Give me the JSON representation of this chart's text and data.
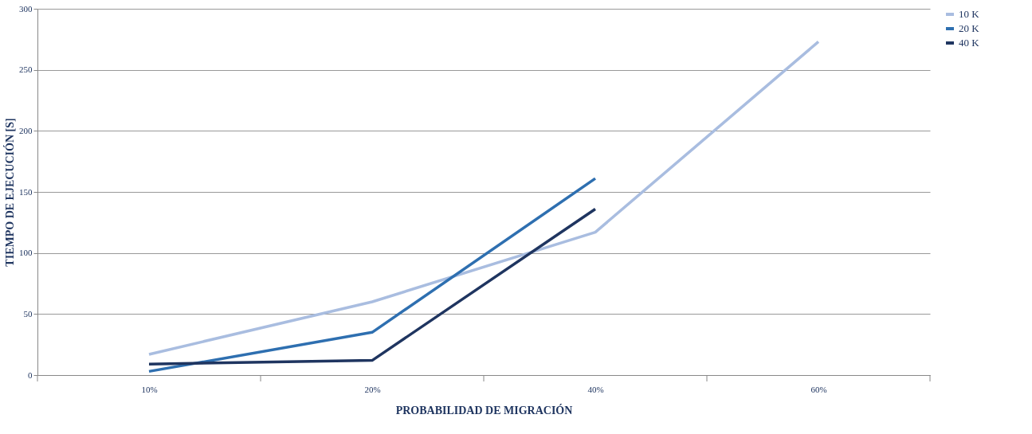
{
  "chart_data": {
    "type": "line",
    "xlabel": "PROBABILIDAD DE MIGRACIÓN",
    "ylabel": "TIEMPO DE EJECUCIÓN [S]",
    "categories": [
      "10%",
      "20%",
      "40%",
      "60%"
    ],
    "series": [
      {
        "name": "10 K",
        "color": "#a9bde0",
        "values": [
          17,
          60,
          117,
          273
        ]
      },
      {
        "name": "20 K",
        "color": "#2e6fb0",
        "values": [
          3,
          35,
          161,
          null
        ]
      },
      {
        "name": "40 K",
        "color": "#1f3560",
        "values": [
          9,
          12,
          136,
          null
        ]
      }
    ],
    "ylim": [
      0,
      300
    ],
    "yticks": [
      0,
      50,
      100,
      150,
      200,
      250,
      300
    ],
    "grid": "y",
    "legend": "right",
    "marker": "none",
    "line_style": "solid"
  }
}
